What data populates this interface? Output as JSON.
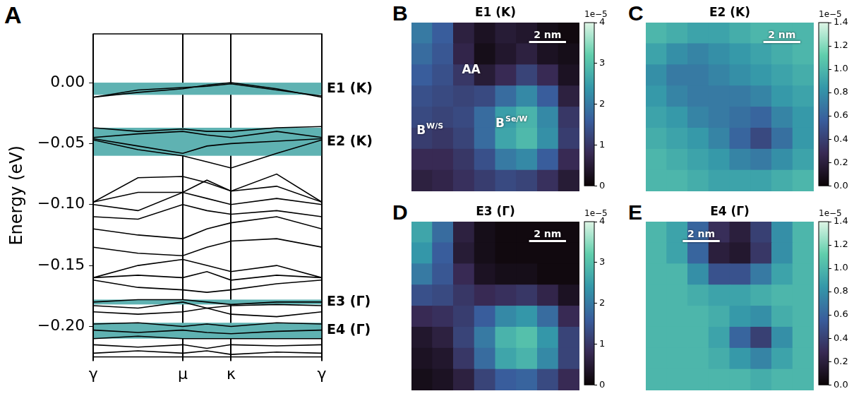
{
  "chart_data": [
    {
      "type": "line",
      "panel": "A",
      "ylabel": "Energy (eV)",
      "color": "#000000",
      "grid": "x",
      "x": [
        0,
        0.5,
        1.0,
        1.27,
        1.54,
        2.05,
        2.555
      ],
      "xlim": [
        0,
        2.555
      ],
      "xticks": [
        {
          "value": 0,
          "label": "γ"
        },
        {
          "value": 1.0,
          "label": "μ"
        },
        {
          "value": 1.54,
          "label": "κ"
        },
        {
          "value": 2.555,
          "label": "γ"
        }
      ],
      "ylim": [
        -0.225,
        0.04
      ],
      "yticks": [
        {
          "value": -0.2,
          "label": "−0.20"
        },
        {
          "value": -0.15,
          "label": "−0.15"
        },
        {
          "value": -0.1,
          "label": "−0.10"
        },
        {
          "value": -0.05,
          "label": "−0.05"
        },
        {
          "value": 0,
          "label": "0.00"
        }
      ],
      "band_color": "#5fb2b2",
      "bands": [
        {
          "label": "E1 (K)",
          "range": [
            -0.01,
            0.0
          ]
        },
        {
          "label": "E2 (K)",
          "range": [
            -0.06,
            -0.037
          ]
        },
        {
          "label": "E3 (Γ)",
          "range": [
            -0.182,
            -0.178
          ]
        },
        {
          "label": "E4 (Γ)",
          "range": [
            -0.21,
            -0.197
          ]
        }
      ],
      "series": [
        {
          "values": [
            -0.012,
            -0.008,
            -0.005,
            -0.002,
            0.0,
            -0.005,
            -0.012
          ]
        },
        {
          "values": [
            -0.012,
            -0.006,
            -0.004,
            -0.003,
            -0.001,
            -0.006,
            -0.011
          ]
        },
        {
          "values": [
            -0.037,
            -0.04,
            -0.038,
            -0.04,
            -0.04,
            -0.037,
            -0.036
          ]
        },
        {
          "values": [
            -0.045,
            -0.042,
            -0.04,
            -0.043,
            -0.045,
            -0.04,
            -0.045
          ]
        },
        {
          "values": [
            -0.046,
            -0.052,
            -0.058,
            -0.052,
            -0.05,
            -0.048,
            -0.046
          ]
        },
        {
          "values": [
            -0.047,
            -0.055,
            -0.06,
            -0.065,
            -0.07,
            -0.058,
            -0.047
          ]
        },
        {
          "values": [
            -0.098,
            -0.078,
            -0.077,
            -0.082,
            -0.089,
            -0.075,
            -0.098
          ]
        },
        {
          "values": [
            -0.098,
            -0.09,
            -0.09,
            -0.08,
            -0.089,
            -0.085,
            -0.098
          ]
        },
        {
          "values": [
            -0.1,
            -0.105,
            -0.09,
            -0.095,
            -0.1,
            -0.095,
            -0.1
          ]
        },
        {
          "values": [
            -0.11,
            -0.112,
            -0.1,
            -0.105,
            -0.108,
            -0.105,
            -0.11
          ]
        },
        {
          "values": [
            -0.12,
            -0.125,
            -0.128,
            -0.12,
            -0.115,
            -0.11,
            -0.12
          ]
        },
        {
          "values": [
            -0.135,
            -0.14,
            -0.142,
            -0.135,
            -0.13,
            -0.128,
            -0.135
          ]
        },
        {
          "values": [
            -0.16,
            -0.15,
            -0.145,
            -0.15,
            -0.155,
            -0.15,
            -0.16
          ]
        },
        {
          "values": [
            -0.16,
            -0.158,
            -0.16,
            -0.155,
            -0.162,
            -0.158,
            -0.16
          ]
        },
        {
          "values": [
            -0.162,
            -0.168,
            -0.17,
            -0.172,
            -0.17,
            -0.165,
            -0.162
          ]
        },
        {
          "values": [
            -0.18,
            -0.178,
            -0.178,
            -0.18,
            -0.182,
            -0.18,
            -0.18
          ]
        },
        {
          "values": [
            -0.183,
            -0.185,
            -0.18,
            -0.185,
            -0.183,
            -0.182,
            -0.183
          ]
        },
        {
          "values": [
            -0.188,
            -0.19,
            -0.188,
            -0.185,
            -0.19,
            -0.192,
            -0.188
          ]
        },
        {
          "values": [
            -0.198,
            -0.197,
            -0.2,
            -0.198,
            -0.2,
            -0.197,
            -0.198
          ]
        },
        {
          "values": [
            -0.203,
            -0.205,
            -0.203,
            -0.205,
            -0.206,
            -0.204,
            -0.203
          ]
        },
        {
          "values": [
            -0.21,
            -0.208,
            -0.21,
            -0.21,
            -0.21,
            -0.21,
            -0.21
          ]
        },
        {
          "values": [
            -0.215,
            -0.217,
            -0.215,
            -0.218,
            -0.215,
            -0.216,
            -0.215
          ]
        },
        {
          "values": [
            -0.222,
            -0.22,
            -0.222,
            -0.22,
            -0.223,
            -0.221,
            -0.222
          ]
        }
      ]
    },
    {
      "type": "heatmap",
      "panel": "B",
      "title": "E1 (K)",
      "tick_labels": false,
      "scale_bar": "2 nm",
      "annotations": [
        {
          "text": "AA"
        },
        {
          "text": "B",
          "superscript": "W/S"
        },
        {
          "text": "B",
          "superscript": "Se/W"
        }
      ],
      "colorbar": {
        "range": [
          0,
          4
        ],
        "ticks": [
          0,
          1,
          2,
          3,
          4
        ],
        "offset_label": "1e−5"
      },
      "cells": [
        [
          2.0,
          1.6,
          0.6,
          0.3,
          0.5,
          0.4,
          0.2,
          0.1
        ],
        [
          1.8,
          1.5,
          0.7,
          0.2,
          0.4,
          0.6,
          0.3,
          0.2
        ],
        [
          1.6,
          1.4,
          1.0,
          0.5,
          0.8,
          1.2,
          0.8,
          0.3
        ],
        [
          1.4,
          1.3,
          1.2,
          1.3,
          1.8,
          2.2,
          1.6,
          0.6
        ],
        [
          1.3,
          1.2,
          1.3,
          1.8,
          2.5,
          2.8,
          2.2,
          1.0
        ],
        [
          1.1,
          1.0,
          1.2,
          1.8,
          2.6,
          2.9,
          2.3,
          1.1
        ],
        [
          0.8,
          0.8,
          1.0,
          1.4,
          2.0,
          2.2,
          1.6,
          0.8
        ],
        [
          0.6,
          0.7,
          0.9,
          1.1,
          1.3,
          1.2,
          0.9,
          0.5
        ]
      ]
    },
    {
      "type": "heatmap",
      "panel": "C",
      "title": "E2 (K)",
      "tick_labels": false,
      "scale_bar": "2 nm",
      "colorbar": {
        "range": [
          0,
          1.4
        ],
        "ticks": [
          {
            "value": 0,
            "label": "0.0"
          },
          0.2,
          0.4,
          0.6,
          0.8,
          {
            "value": 1,
            "label": "1.0"
          },
          1.2,
          1.4
        ],
        "offset_label": "1e−5"
      },
      "cells": [
        [
          1.0,
          0.95,
          0.9,
          0.9,
          0.95,
          1.0,
          1.0,
          1.0
        ],
        [
          0.9,
          0.8,
          0.75,
          0.8,
          0.85,
          0.9,
          0.95,
          1.0
        ],
        [
          0.8,
          0.7,
          0.7,
          0.75,
          0.8,
          0.85,
          0.9,
          0.95
        ],
        [
          0.85,
          0.75,
          0.7,
          0.7,
          0.7,
          0.75,
          0.85,
          0.9
        ],
        [
          0.9,
          0.85,
          0.75,
          0.7,
          0.65,
          0.6,
          0.75,
          0.85
        ],
        [
          0.95,
          0.9,
          0.85,
          0.75,
          0.6,
          0.45,
          0.65,
          0.85
        ],
        [
          1.0,
          0.95,
          0.9,
          0.85,
          0.75,
          0.7,
          0.8,
          0.9
        ],
        [
          1.0,
          1.0,
          0.95,
          0.9,
          0.9,
          0.9,
          0.95,
          1.0
        ]
      ]
    },
    {
      "type": "heatmap",
      "panel": "D",
      "title": "E3 (Γ)",
      "tick_labels": false,
      "scale_bar": "2 nm",
      "colorbar": {
        "range": [
          0,
          4
        ],
        "ticks": [
          0,
          1,
          2,
          3,
          4
        ],
        "offset_label": "1e−5"
      },
      "cells": [
        [
          2.6,
          1.8,
          0.6,
          0.2,
          0.1,
          0.1,
          0.1,
          0.1
        ],
        [
          2.4,
          1.6,
          0.5,
          0.2,
          0.1,
          0.1,
          0.1,
          0.1
        ],
        [
          2.0,
          1.5,
          0.8,
          0.3,
          0.2,
          0.2,
          0.1,
          0.1
        ],
        [
          1.4,
          1.3,
          1.0,
          0.8,
          0.9,
          1.0,
          0.7,
          0.3
        ],
        [
          0.8,
          0.9,
          1.1,
          1.6,
          2.2,
          2.4,
          1.8,
          0.8
        ],
        [
          0.4,
          0.6,
          1.2,
          2.0,
          2.8,
          3.0,
          2.4,
          1.2
        ],
        [
          0.3,
          0.4,
          1.0,
          1.8,
          2.6,
          2.8,
          2.2,
          1.2
        ],
        [
          0.2,
          0.3,
          0.6,
          1.2,
          1.6,
          1.7,
          1.3,
          0.8
        ]
      ]
    },
    {
      "type": "heatmap",
      "panel": "E",
      "title": "E4 (Γ)",
      "tick_labels": false,
      "scale_bar": "2 nm",
      "colorbar": {
        "range": [
          0,
          1.4
        ],
        "ticks": [
          {
            "value": 0,
            "label": "0.0"
          },
          0.2,
          0.4,
          0.6,
          0.8,
          {
            "value": 1,
            "label": "1.0"
          },
          1.2,
          1.4
        ],
        "offset_label": "1e−5"
      },
      "cells": [
        [
          1.0,
          0.9,
          0.6,
          0.3,
          0.2,
          0.4,
          0.8,
          1.0
        ],
        [
          1.0,
          0.9,
          0.6,
          0.2,
          0.15,
          0.35,
          0.8,
          1.0
        ],
        [
          1.0,
          1.0,
          0.8,
          0.5,
          0.5,
          0.7,
          0.9,
          1.0
        ],
        [
          1.0,
          1.0,
          0.95,
          0.9,
          0.9,
          0.95,
          1.0,
          1.0
        ],
        [
          1.0,
          1.0,
          1.0,
          0.95,
          0.85,
          0.8,
          0.95,
          1.0
        ],
        [
          1.0,
          1.0,
          1.0,
          0.9,
          0.6,
          0.4,
          0.8,
          1.0
        ],
        [
          1.0,
          1.0,
          1.0,
          0.95,
          0.85,
          0.75,
          0.9,
          1.0
        ],
        [
          1.0,
          1.0,
          1.0,
          1.0,
          1.0,
          0.95,
          1.0,
          1.0
        ]
      ]
    }
  ]
}
